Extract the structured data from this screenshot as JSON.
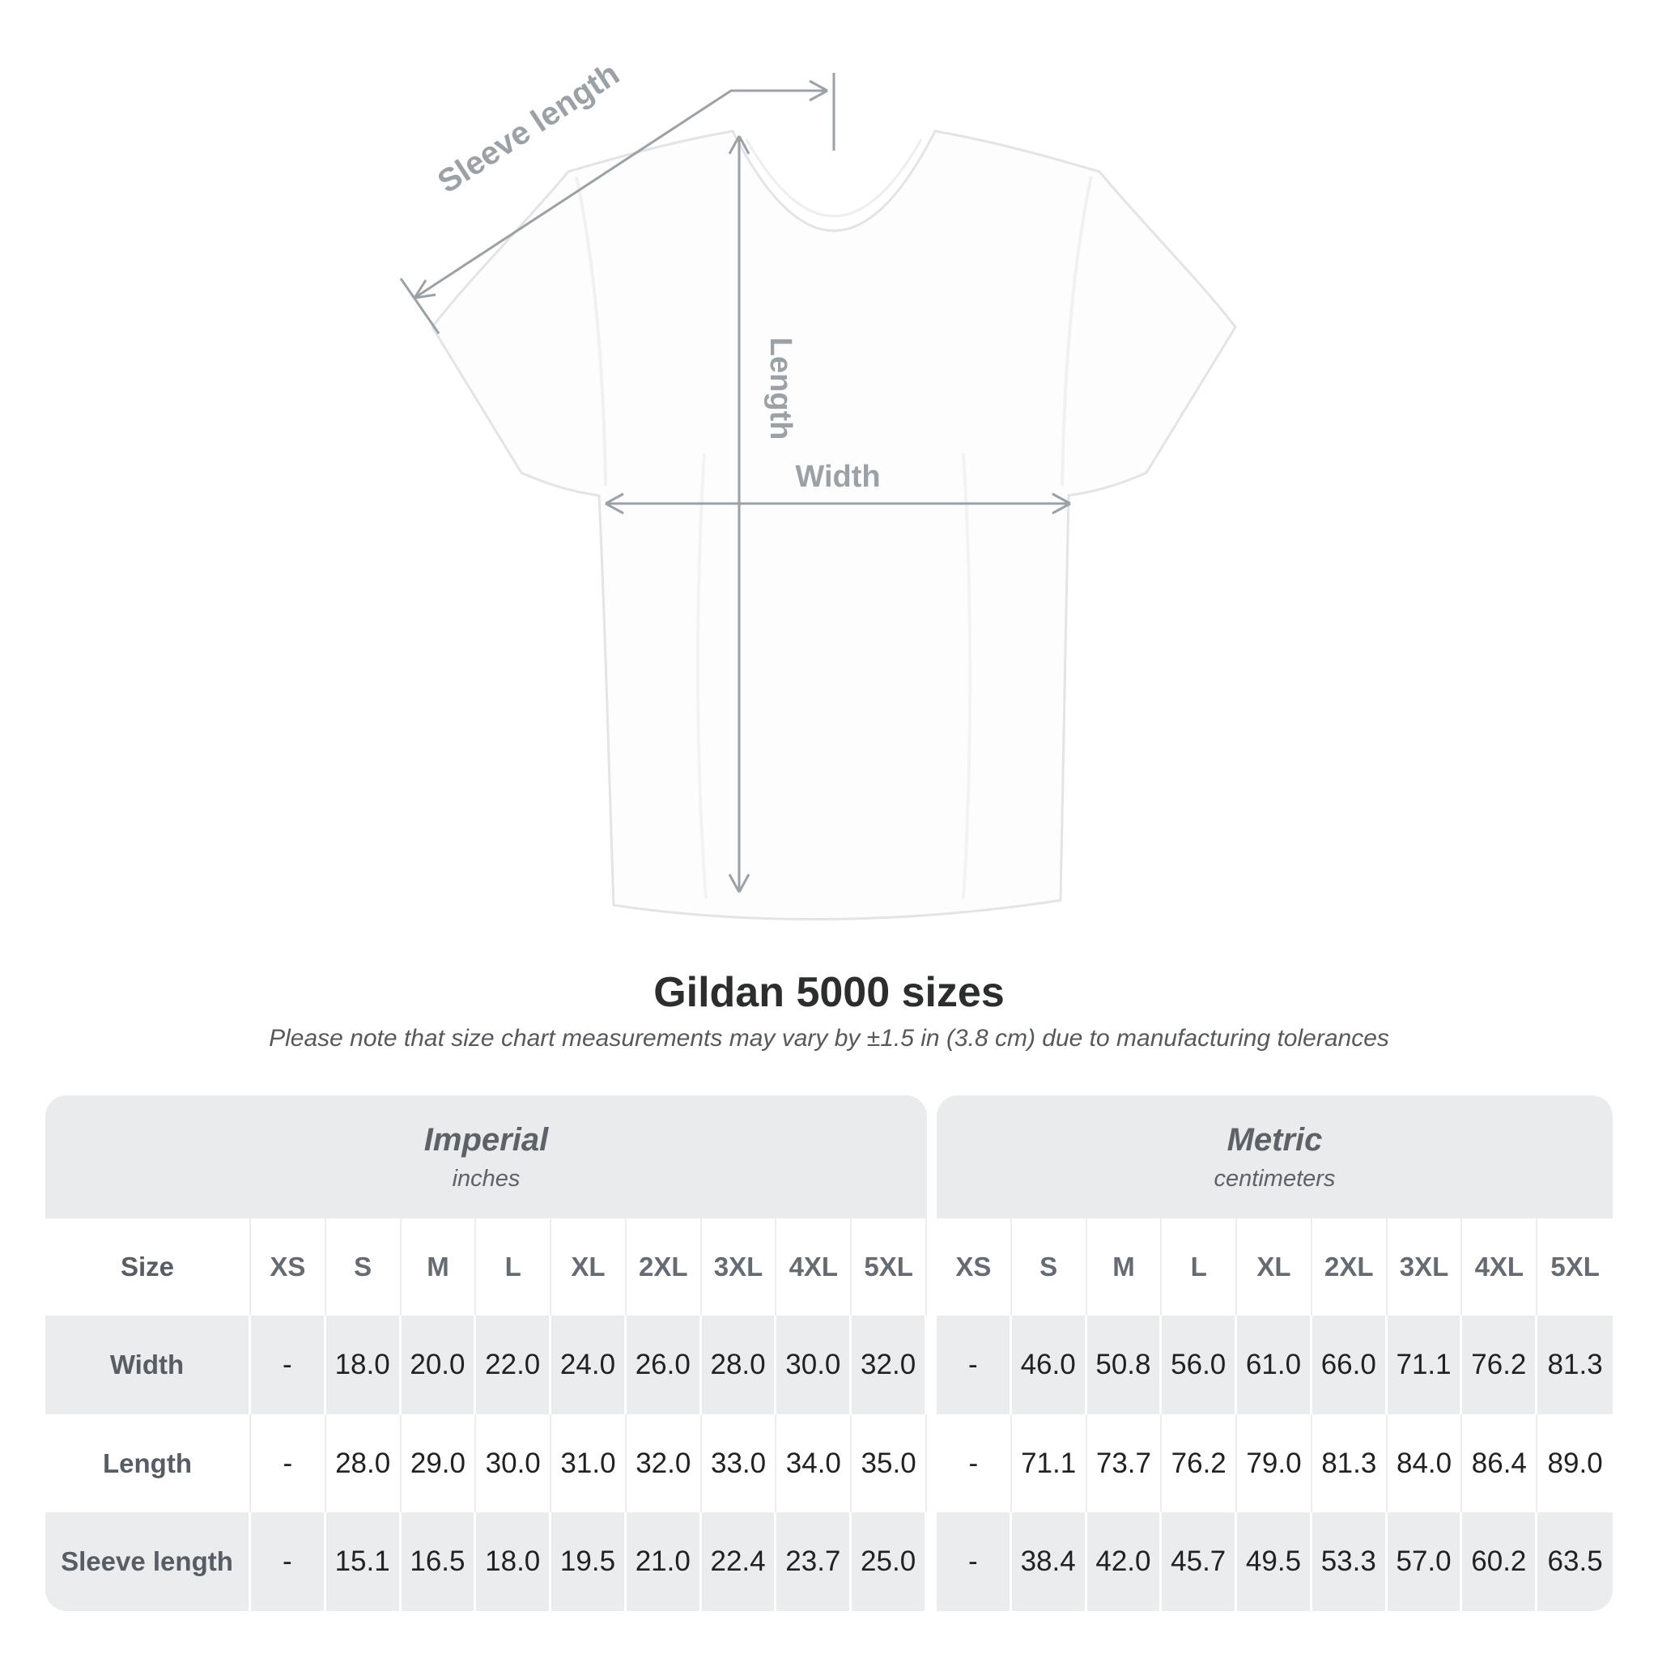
{
  "diagram": {
    "sleeve_label": "Sleeve length",
    "length_label": "Length",
    "width_label": "Width"
  },
  "title": "Gildan 5000 sizes",
  "subtitle": "Please note that size chart measurements may vary by ±1.5 in (3.8 cm) due to manufacturing tolerances",
  "table": {
    "size_header": "Size",
    "groups": [
      {
        "label": "Imperial",
        "sublabel": "inches"
      },
      {
        "label": "Metric",
        "sublabel": "centimeters"
      }
    ]
  },
  "chart_data": {
    "type": "table",
    "title": "Gildan 5000 sizes",
    "note": "Please note that size chart measurements may vary by ±1.5 in (3.8 cm) due to manufacturing tolerances",
    "unit_groups": [
      {
        "name": "Imperial",
        "unit": "inches"
      },
      {
        "name": "Metric",
        "unit": "centimeters"
      }
    ],
    "sizes": [
      "XS",
      "S",
      "M",
      "L",
      "XL",
      "2XL",
      "3XL",
      "4XL",
      "5XL"
    ],
    "rows": [
      {
        "measure": "Width",
        "imperial": [
          "-",
          "18.0",
          "20.0",
          "22.0",
          "24.0",
          "26.0",
          "28.0",
          "30.0",
          "32.0"
        ],
        "metric": [
          "-",
          "46.0",
          "50.8",
          "56.0",
          "61.0",
          "66.0",
          "71.1",
          "76.2",
          "81.3"
        ]
      },
      {
        "measure": "Length",
        "imperial": [
          "-",
          "28.0",
          "29.0",
          "30.0",
          "31.0",
          "32.0",
          "33.0",
          "34.0",
          "35.0"
        ],
        "metric": [
          "-",
          "71.1",
          "73.7",
          "76.2",
          "79.0",
          "81.3",
          "84.0",
          "86.4",
          "89.0"
        ]
      },
      {
        "measure": "Sleeve length",
        "imperial": [
          "-",
          "15.1",
          "16.5",
          "18.0",
          "19.5",
          "21.0",
          "22.4",
          "23.7",
          "25.0"
        ],
        "metric": [
          "-",
          "38.4",
          "42.0",
          "45.7",
          "49.5",
          "53.3",
          "57.0",
          "60.2",
          "63.5"
        ]
      }
    ]
  },
  "colors": {
    "header_band_gray": "#eaebec",
    "row_gray": "#ebeced",
    "heading_text": "#2b2d2f",
    "muted_text": "#5c6268",
    "value_text": "#1f2123",
    "dimension_gray": "#9aa1a7",
    "shirt_outline": "#e2e4e6"
  }
}
